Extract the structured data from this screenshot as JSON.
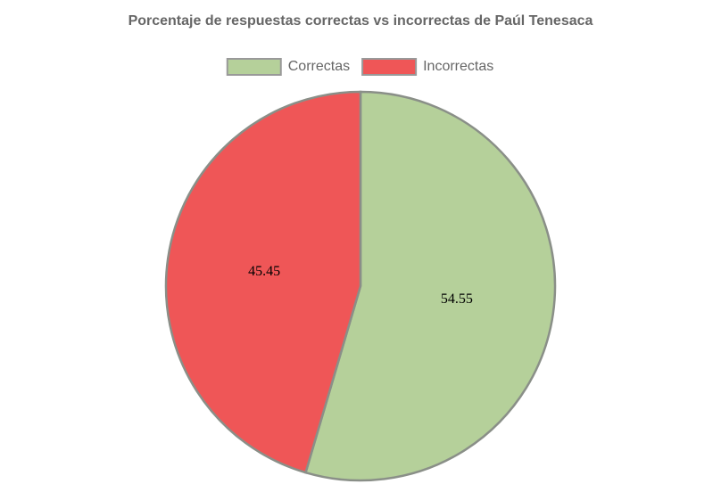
{
  "chart_data": {
    "type": "pie",
    "title": "Porcentaje de respuestas correctas vs incorrectas de Paúl Tenesaca",
    "categories": [
      "Correctas",
      "Incorrectas"
    ],
    "values": [
      54.55,
      45.45
    ],
    "colors": [
      "#b5d09a",
      "#ef5657"
    ],
    "legend": "top"
  }
}
